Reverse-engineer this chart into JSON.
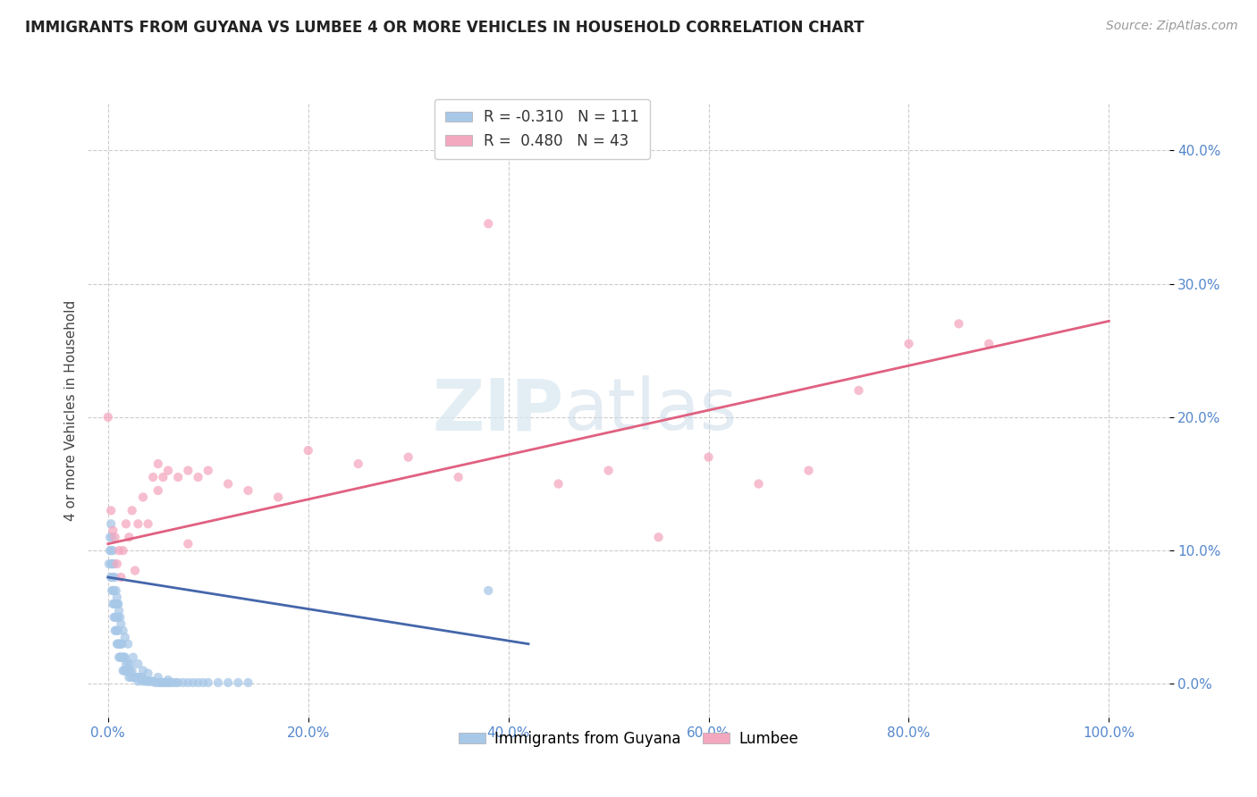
{
  "title": "IMMIGRANTS FROM GUYANA VS LUMBEE 4 OR MORE VEHICLES IN HOUSEHOLD CORRELATION CHART",
  "source": "Source: ZipAtlas.com",
  "ylabel": "4 or more Vehicles in Household",
  "r_guyana": -0.31,
  "n_guyana": 111,
  "r_lumbee": 0.48,
  "n_lumbee": 43,
  "x_ticks": [
    0.0,
    0.2,
    0.4,
    0.6,
    0.8,
    1.0
  ],
  "x_tick_labels": [
    "0.0%",
    "20.0%",
    "40.0%",
    "60.0%",
    "80.0%",
    "100.0%"
  ],
  "y_ticks": [
    0.0,
    0.1,
    0.2,
    0.3,
    0.4
  ],
  "y_tick_labels": [
    "0.0%",
    "10.0%",
    "20.0%",
    "30.0%",
    "40.0%"
  ],
  "xlim": [
    -0.02,
    1.06
  ],
  "ylim": [
    -0.025,
    0.435
  ],
  "color_guyana": "#a8c8e8",
  "color_lumbee": "#f4a8c0",
  "line_color_guyana": "#4466aa",
  "line_color_lumbee": "#e06080",
  "background_color": "#ffffff",
  "watermark_zip": "ZIP",
  "watermark_atlas": "atlas",
  "guyana_x": [
    0.001,
    0.002,
    0.002,
    0.003,
    0.003,
    0.003,
    0.004,
    0.004,
    0.004,
    0.005,
    0.005,
    0.005,
    0.005,
    0.006,
    0.006,
    0.006,
    0.007,
    0.007,
    0.007,
    0.008,
    0.008,
    0.008,
    0.009,
    0.009,
    0.009,
    0.01,
    0.01,
    0.01,
    0.01,
    0.011,
    0.011,
    0.012,
    0.012,
    0.013,
    0.013,
    0.014,
    0.014,
    0.015,
    0.015,
    0.016,
    0.016,
    0.017,
    0.017,
    0.018,
    0.018,
    0.019,
    0.02,
    0.02,
    0.021,
    0.022,
    0.022,
    0.023,
    0.024,
    0.025,
    0.026,
    0.027,
    0.028,
    0.029,
    0.03,
    0.031,
    0.033,
    0.034,
    0.035,
    0.036,
    0.038,
    0.04,
    0.041,
    0.043,
    0.045,
    0.047,
    0.05,
    0.052,
    0.054,
    0.056,
    0.058,
    0.06,
    0.062,
    0.065,
    0.068,
    0.07,
    0.075,
    0.08,
    0.085,
    0.09,
    0.095,
    0.1,
    0.11,
    0.12,
    0.13,
    0.14,
    0.003,
    0.004,
    0.005,
    0.006,
    0.007,
    0.008,
    0.009,
    0.01,
    0.011,
    0.012,
    0.013,
    0.015,
    0.017,
    0.02,
    0.025,
    0.03,
    0.035,
    0.04,
    0.05,
    0.06,
    0.38
  ],
  "guyana_y": [
    0.09,
    0.1,
    0.11,
    0.08,
    0.09,
    0.1,
    0.07,
    0.08,
    0.09,
    0.06,
    0.07,
    0.08,
    0.09,
    0.05,
    0.06,
    0.07,
    0.04,
    0.05,
    0.06,
    0.04,
    0.05,
    0.06,
    0.03,
    0.04,
    0.05,
    0.03,
    0.04,
    0.05,
    0.06,
    0.02,
    0.03,
    0.02,
    0.03,
    0.02,
    0.03,
    0.02,
    0.03,
    0.01,
    0.02,
    0.01,
    0.02,
    0.01,
    0.02,
    0.01,
    0.015,
    0.01,
    0.01,
    0.015,
    0.005,
    0.01,
    0.015,
    0.005,
    0.01,
    0.005,
    0.005,
    0.005,
    0.005,
    0.005,
    0.002,
    0.005,
    0.003,
    0.005,
    0.002,
    0.003,
    0.002,
    0.002,
    0.002,
    0.002,
    0.002,
    0.001,
    0.001,
    0.001,
    0.001,
    0.001,
    0.001,
    0.001,
    0.001,
    0.001,
    0.001,
    0.001,
    0.001,
    0.001,
    0.001,
    0.001,
    0.001,
    0.001,
    0.001,
    0.001,
    0.001,
    0.001,
    0.12,
    0.11,
    0.1,
    0.09,
    0.08,
    0.07,
    0.065,
    0.06,
    0.055,
    0.05,
    0.045,
    0.04,
    0.035,
    0.03,
    0.02,
    0.015,
    0.01,
    0.008,
    0.005,
    0.003,
    0.07
  ],
  "lumbee_x": [
    0.0,
    0.003,
    0.005,
    0.007,
    0.009,
    0.011,
    0.013,
    0.015,
    0.018,
    0.021,
    0.024,
    0.027,
    0.03,
    0.035,
    0.04,
    0.045,
    0.05,
    0.055,
    0.06,
    0.07,
    0.08,
    0.09,
    0.1,
    0.12,
    0.14,
    0.17,
    0.2,
    0.25,
    0.3,
    0.35,
    0.45,
    0.5,
    0.55,
    0.6,
    0.65,
    0.7,
    0.75,
    0.8,
    0.85,
    0.88,
    0.05,
    0.08,
    0.38
  ],
  "lumbee_y": [
    0.2,
    0.13,
    0.115,
    0.11,
    0.09,
    0.1,
    0.08,
    0.1,
    0.12,
    0.11,
    0.13,
    0.085,
    0.12,
    0.14,
    0.12,
    0.155,
    0.145,
    0.155,
    0.16,
    0.155,
    0.16,
    0.155,
    0.16,
    0.15,
    0.145,
    0.14,
    0.175,
    0.165,
    0.17,
    0.155,
    0.15,
    0.16,
    0.11,
    0.17,
    0.15,
    0.16,
    0.22,
    0.255,
    0.27,
    0.255,
    0.165,
    0.105,
    0.345
  ],
  "line_guyana_x0": 0.0,
  "line_guyana_x1": 0.42,
  "line_guyana_y0": 0.08,
  "line_guyana_y1": 0.03,
  "line_lumbee_x0": 0.0,
  "line_lumbee_x1": 1.0,
  "line_lumbee_y0": 0.105,
  "line_lumbee_y1": 0.272
}
